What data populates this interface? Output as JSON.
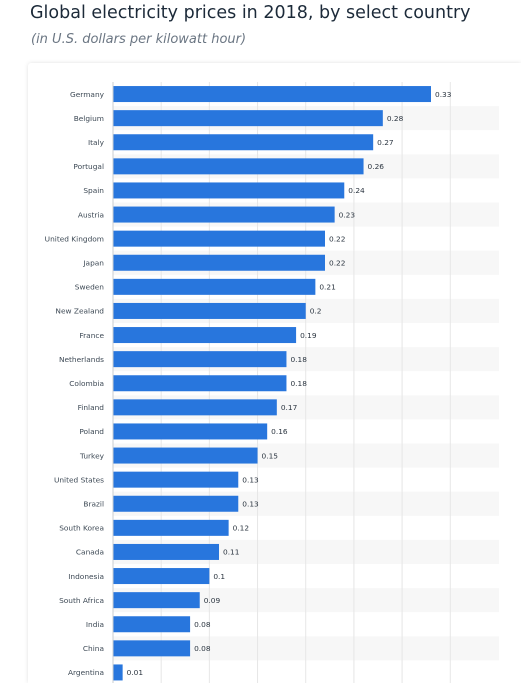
{
  "header": {
    "title": "Global electricity prices in 2018, by select country",
    "subtitle": "(in U.S. dollars per kilowatt hour)"
  },
  "colors": {
    "bar": "#2876dd",
    "band": "#f7f7f7",
    "grid": "#e6e6e6"
  },
  "chart_data": {
    "type": "bar",
    "orientation": "horizontal",
    "title": "Global electricity prices in 2018, by select country",
    "subtitle": "(in U.S. dollars per kilowatt hour)",
    "xlabel": "",
    "ylabel": "",
    "xlim": [
      0,
      0.35
    ],
    "grid": true,
    "categories": [
      "Germany",
      "Belgium",
      "Italy",
      "Portugal",
      "Spain",
      "Austria",
      "United Kingdom",
      "Japan",
      "Sweden",
      "New Zealand",
      "France",
      "Netherlands",
      "Colombia",
      "Finland",
      "Poland",
      "Turkey",
      "United States",
      "Brazil",
      "South Korea",
      "Canada",
      "Indonesia",
      "South Africa",
      "India",
      "China",
      "Argentina"
    ],
    "values": [
      0.33,
      0.28,
      0.27,
      0.26,
      0.24,
      0.23,
      0.22,
      0.22,
      0.21,
      0.2,
      0.19,
      0.18,
      0.18,
      0.17,
      0.16,
      0.15,
      0.13,
      0.13,
      0.12,
      0.11,
      0.1,
      0.09,
      0.08,
      0.08,
      0.01
    ],
    "value_labels": [
      "0.33",
      "0.28",
      "0.27",
      "0.26",
      "0.24",
      "0.23",
      "0.22",
      "0.22",
      "0.21",
      "0.2",
      "0.19",
      "0.18",
      "0.18",
      "0.17",
      "0.16",
      "0.15",
      "0.13",
      "0.13",
      "0.12",
      "0.11",
      "0.1",
      "0.09",
      "0.08",
      "0.08",
      "0.01"
    ]
  }
}
